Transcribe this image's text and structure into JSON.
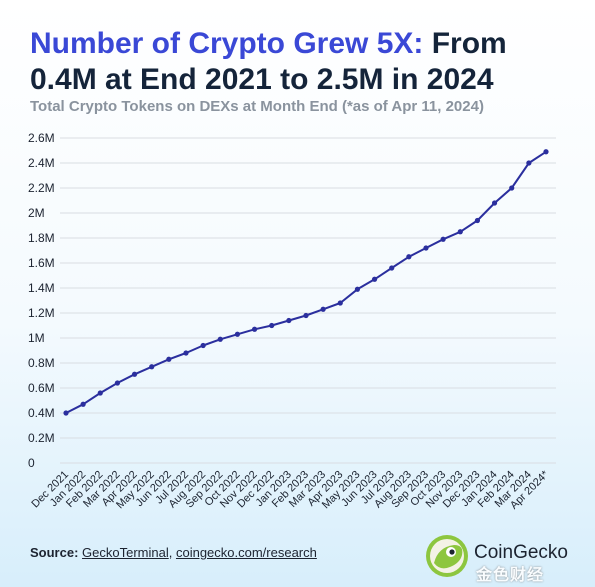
{
  "header": {
    "title_accent": "Number of Crypto Grew 5X:",
    "title_rest": " From 0.4M at End 2021 to 2.5M in 2024",
    "subtitle": "Total Crypto Tokens on DEXs at Month End (*as of Apr 11, 2024)"
  },
  "footer": {
    "source_label": "Source:",
    "source_link_1": "GeckoTerminal",
    "source_sep": ", ",
    "source_link_2": "coingecko.com/research",
    "brand_name": "CoinGecko",
    "watermark": "金色财经"
  },
  "colors": {
    "title_accent": "#3a48d6",
    "line": "#2b2f9e",
    "grid": "#d9dde2"
  },
  "chart_data": {
    "type": "line",
    "title": "Total Crypto Tokens on DEXs at Month End (*as of Apr 11, 2024)",
    "xlabel": "",
    "ylabel": "",
    "ylim": [
      0,
      2600000
    ],
    "yticks": [
      {
        "value": 0,
        "label": "0"
      },
      {
        "value": 200000,
        "label": "0.2M"
      },
      {
        "value": 400000,
        "label": "0.4M"
      },
      {
        "value": 600000,
        "label": "0.6M"
      },
      {
        "value": 800000,
        "label": "0.8M"
      },
      {
        "value": 1000000,
        "label": "1M"
      },
      {
        "value": 1200000,
        "label": "1.2M"
      },
      {
        "value": 1400000,
        "label": "1.4M"
      },
      {
        "value": 1600000,
        "label": "1.6M"
      },
      {
        "value": 1800000,
        "label": "1.8M"
      },
      {
        "value": 2000000,
        "label": "2M"
      },
      {
        "value": 2200000,
        "label": "2.2M"
      },
      {
        "value": 2400000,
        "label": "2.4M"
      },
      {
        "value": 2600000,
        "label": "2.6M"
      }
    ],
    "grid": true,
    "categories": [
      "Dec 2021",
      "Jan 2022",
      "Feb 2022",
      "Mar 2022",
      "Apr 2022",
      "May 2022",
      "Jun 2022",
      "Jul 2022",
      "Aug 2022",
      "Sep 2022",
      "Oct 2022",
      "Nov 2022",
      "Dec 2022",
      "Jan 2023",
      "Feb 2023",
      "Mar 2023",
      "Apr 2023",
      "May 2023",
      "Jun 2023",
      "Jul 2023",
      "Aug 2023",
      "Sep 2023",
      "Oct 2023",
      "Nov 2023",
      "Dec 2023",
      "Jan 2024",
      "Feb 2024",
      "Mar 2024",
      "Apr 2024*"
    ],
    "values": [
      400000,
      470000,
      560000,
      640000,
      710000,
      770000,
      830000,
      880000,
      940000,
      990000,
      1030000,
      1070000,
      1100000,
      1140000,
      1180000,
      1230000,
      1280000,
      1390000,
      1470000,
      1560000,
      1650000,
      1720000,
      1790000,
      1850000,
      1940000,
      2080000,
      2200000,
      2400000,
      2490000
    ]
  }
}
